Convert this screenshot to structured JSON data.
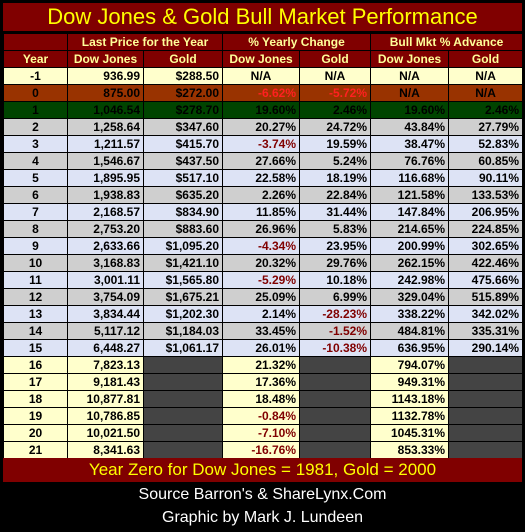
{
  "chart_data": {
    "type": "table",
    "title": "Dow Jones & Gold Bull Market Performance",
    "group_headers": [
      "Last Price for the Year",
      "% Yearly Change",
      "Bull Mkt % Advance"
    ],
    "columns": [
      "Year",
      "Dow Jones",
      "Gold",
      "Dow Jones",
      "Gold",
      "Dow Jones",
      "Gold"
    ],
    "rows": [
      [
        "-1",
        "936.99",
        "$288.50",
        "N/A",
        "N/A",
        "N/A",
        "N/A"
      ],
      [
        "0",
        "875.00",
        "$272.00",
        "-6.62%",
        "-5.72%",
        "N/A",
        "N/A"
      ],
      [
        "1",
        "1,046.54",
        "$278.70",
        "19.60%",
        "2.46%",
        "19.60%",
        "2.46%"
      ],
      [
        "2",
        "1,258.64",
        "$347.60",
        "20.27%",
        "24.72%",
        "43.84%",
        "27.79%"
      ],
      [
        "3",
        "1,211.57",
        "$415.70",
        "-3.74%",
        "19.59%",
        "38.47%",
        "52.83%"
      ],
      [
        "4",
        "1,546.67",
        "$437.50",
        "27.66%",
        "5.24%",
        "76.76%",
        "60.85%"
      ],
      [
        "5",
        "1,895.95",
        "$517.10",
        "22.58%",
        "18.19%",
        "116.68%",
        "90.11%"
      ],
      [
        "6",
        "1,938.83",
        "$635.20",
        "2.26%",
        "22.84%",
        "121.58%",
        "133.53%"
      ],
      [
        "7",
        "2,168.57",
        "$834.90",
        "11.85%",
        "31.44%",
        "147.84%",
        "206.95%"
      ],
      [
        "8",
        "2,753.20",
        "$883.60",
        "26.96%",
        "5.83%",
        "214.65%",
        "224.85%"
      ],
      [
        "9",
        "2,633.66",
        "$1,095.20",
        "-4.34%",
        "23.95%",
        "200.99%",
        "302.65%"
      ],
      [
        "10",
        "3,168.83",
        "$1,421.10",
        "20.32%",
        "29.76%",
        "262.15%",
        "422.46%"
      ],
      [
        "11",
        "3,001.11",
        "$1,565.80",
        "-5.29%",
        "10.18%",
        "242.98%",
        "475.66%"
      ],
      [
        "12",
        "3,754.09",
        "$1,675.21",
        "25.09%",
        "6.99%",
        "329.04%",
        "515.89%"
      ],
      [
        "13",
        "3,834.44",
        "$1,202.30",
        "2.14%",
        "-28.23%",
        "338.22%",
        "342.02%"
      ],
      [
        "14",
        "5,117.12",
        "$1,184.03",
        "33.45%",
        "-1.52%",
        "484.81%",
        "335.31%"
      ],
      [
        "15",
        "6,448.27",
        "$1,061.17",
        "26.01%",
        "-10.38%",
        "636.95%",
        "290.14%"
      ],
      [
        "16",
        "7,823.13",
        "",
        "21.32%",
        "",
        "794.07%",
        ""
      ],
      [
        "17",
        "9,181.43",
        "",
        "17.36%",
        "",
        "949.31%",
        ""
      ],
      [
        "18",
        "10,877.81",
        "",
        "18.48%",
        "",
        "1143.18%",
        ""
      ],
      [
        "19",
        "10,786.85",
        "",
        "-0.84%",
        "",
        "1132.78%",
        ""
      ],
      [
        "20",
        "10,021.50",
        "",
        "-7.10%",
        "",
        "1045.31%",
        ""
      ],
      [
        "21",
        "8,341.63",
        "",
        "-16.76%",
        "",
        "853.33%",
        ""
      ]
    ],
    "footer": "Year Zero for Dow Jones = 1981, Gold = 2000"
  },
  "credits": {
    "line1": "Source Barron's & ShareLynx.Com",
    "line2": "Graphic by Mark J. Lundeen"
  },
  "colors": {
    "title_bg": "#800000",
    "title_text": "#ffff00",
    "row_cream": "#ffffcc",
    "row_gray": "#cfcfcf",
    "row_blue": "#dde3f5",
    "year1_row": "#004400",
    "year0_row": "#993300"
  }
}
